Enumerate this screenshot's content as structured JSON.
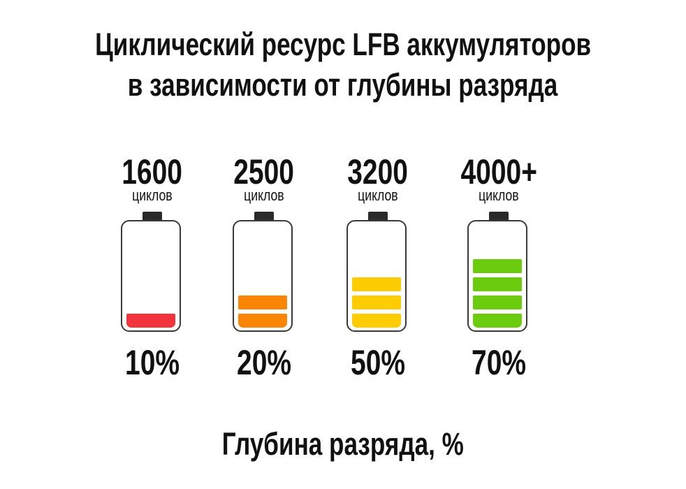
{
  "chart_data": {
    "type": "bar",
    "title": "Циклический ресурс LFB аккумуляторов",
    "subtitle": "в зависимости от глубины разряда",
    "xlabel": "Глубина разряда, %",
    "unit_label": "циклов",
    "categories": [
      "10%",
      "20%",
      "50%",
      "70%"
    ],
    "values": [
      10,
      20,
      50,
      70
    ],
    "cycle_labels": [
      "1600",
      "2500",
      "3200",
      "4000+"
    ],
    "cycles": [
      1600,
      2500,
      3200,
      4000
    ],
    "filled_segments": [
      1,
      2,
      3,
      4
    ],
    "colors": [
      "#f2353d",
      "#fb8505",
      "#fecc02",
      "#6acc0c"
    ]
  }
}
